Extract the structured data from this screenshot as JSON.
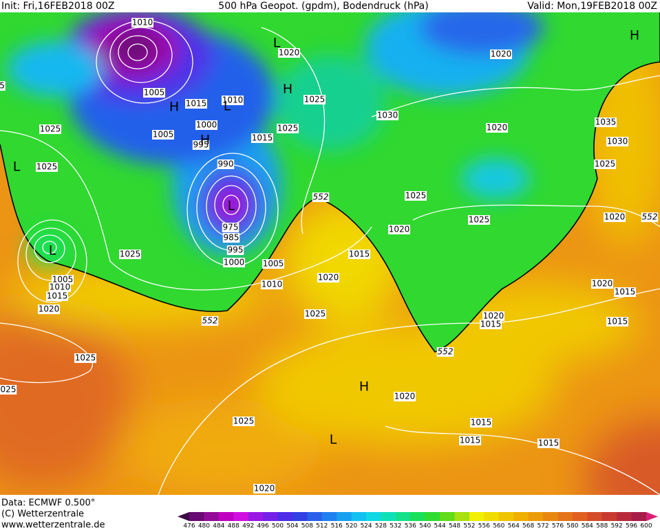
{
  "header": {
    "init": "Init: Fri,16FEB2018 00Z",
    "title": "500 hPa Geopot. (gpdm), Bodendruck (hPa)",
    "valid": "Valid: Mon,19FEB2018 00Z"
  },
  "map": {
    "pressure_labels": [
      "1010",
      "1020",
      "1020",
      "1005",
      "1015",
      "1010",
      "1025",
      "1030",
      "1020",
      "1035",
      "1030",
      "1025",
      "1025",
      "1005",
      "1000",
      "995",
      "1015",
      "1025",
      "990",
      "1025",
      "1025",
      "1025",
      "1020",
      "1020",
      "975",
      "985",
      "995",
      "1000",
      "1005",
      "1025",
      "1015",
      "1005",
      "1010",
      "1015",
      "1020",
      "1010",
      "1020",
      "1020",
      "1015",
      "1025",
      "1020",
      "1015",
      "1015",
      "1025",
      "025",
      "1020",
      "1025",
      "1015",
      "1015",
      "1015",
      "1020",
      "5"
    ],
    "contour_labels": [
      "552",
      "552",
      "552",
      "552"
    ],
    "centers": [
      "H",
      "L",
      "H",
      "H",
      "L",
      "H",
      "L",
      "L",
      "H",
      "L",
      "L"
    ]
  },
  "footer": {
    "data": "Data: ECMWF  0.500°",
    "copyright": "(C) Wetterzentrale",
    "url": "www.wetterzentrale.de"
  },
  "colorbar": {
    "levels": [
      476,
      480,
      484,
      488,
      492,
      496,
      500,
      504,
      508,
      512,
      516,
      520,
      524,
      528,
      532,
      536,
      540,
      544,
      548,
      552,
      556,
      560,
      564,
      568,
      572,
      576,
      580,
      584,
      588,
      592,
      596,
      600
    ],
    "below_color": "#3c0a46",
    "above_color": "#d8207a",
    "colors": [
      "#6a0a74",
      "#940a98",
      "#c000c0",
      "#d010e0",
      "#9a18e4",
      "#7420e8",
      "#4c2ce8",
      "#3040e4",
      "#2860ea",
      "#2080f0",
      "#18a0f0",
      "#14c0f0",
      "#10d8e4",
      "#10e0b8",
      "#14e088",
      "#18e058",
      "#30dc30",
      "#60dc18",
      "#a8e010",
      "#f0f000",
      "#f0dc00",
      "#f0c400",
      "#f0b000",
      "#ec9c08",
      "#e88810",
      "#e47418",
      "#e06020",
      "#d44c28",
      "#c83a30",
      "#b82a3a",
      "#a81c48"
    ]
  }
}
